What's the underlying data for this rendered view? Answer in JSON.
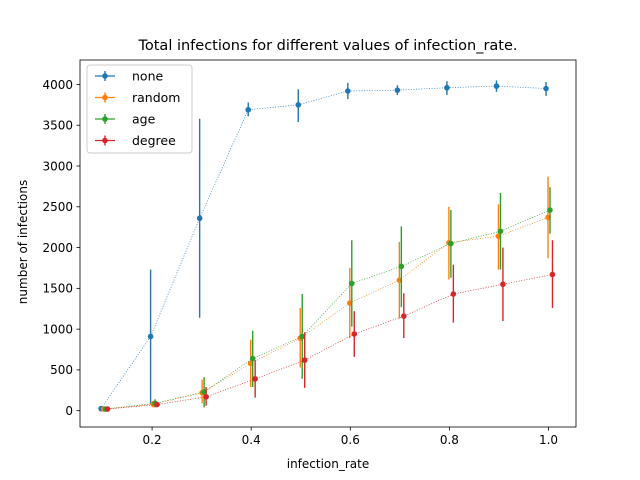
{
  "chart_data": {
    "type": "line",
    "title": "Total infections for different values of infection_rate.",
    "xlabel": "infection_rate",
    "ylabel": "number of infections",
    "xlim": [
      0.0545,
      1.0555
    ],
    "ylim": [
      -200,
      4300
    ],
    "x_ticks": [
      0.2,
      0.4,
      0.6,
      0.8,
      1.0
    ],
    "x_tick_labels": [
      "0.2",
      "0.4",
      "0.6",
      "0.8",
      "1.0"
    ],
    "y_ticks": [
      0,
      500,
      1000,
      1500,
      2000,
      2500,
      3000,
      3500,
      4000
    ],
    "y_tick_labels": [
      "0",
      "500",
      "1000",
      "1500",
      "2000",
      "2500",
      "3000",
      "3500",
      "4000"
    ],
    "grid": false,
    "legend_position": "top-left",
    "series": [
      {
        "name": "none",
        "color": "#1f77b4",
        "points": [
          {
            "x": 0.097,
            "y": 25,
            "lo": 0,
            "hi": 55
          },
          {
            "x": 0.197,
            "y": 910,
            "lo": 90,
            "hi": 1730
          },
          {
            "x": 0.296,
            "y": 2360,
            "lo": 1140,
            "hi": 3580
          },
          {
            "x": 0.394,
            "y": 3690,
            "lo": 3610,
            "hi": 3780
          },
          {
            "x": 0.495,
            "y": 3750,
            "lo": 3540,
            "hi": 3940
          },
          {
            "x": 0.595,
            "y": 3920,
            "lo": 3820,
            "hi": 4020
          },
          {
            "x": 0.695,
            "y": 3930,
            "lo": 3870,
            "hi": 3990
          },
          {
            "x": 0.795,
            "y": 3960,
            "lo": 3870,
            "hi": 4040
          },
          {
            "x": 0.895,
            "y": 3980,
            "lo": 3910,
            "hi": 4050
          },
          {
            "x": 0.995,
            "y": 3950,
            "lo": 3860,
            "hi": 4030
          }
        ]
      },
      {
        "name": "random",
        "color": "#ff7f0e",
        "points": [
          {
            "x": 0.102,
            "y": 20,
            "lo": 5,
            "hi": 40
          },
          {
            "x": 0.202,
            "y": 80,
            "lo": 40,
            "hi": 120
          },
          {
            "x": 0.301,
            "y": 220,
            "lo": 90,
            "hi": 380
          },
          {
            "x": 0.399,
            "y": 580,
            "lo": 290,
            "hi": 870
          },
          {
            "x": 0.499,
            "y": 890,
            "lo": 530,
            "hi": 1260
          },
          {
            "x": 0.599,
            "y": 1320,
            "lo": 890,
            "hi": 1750
          },
          {
            "x": 0.699,
            "y": 1600,
            "lo": 1130,
            "hi": 2070
          },
          {
            "x": 0.799,
            "y": 2060,
            "lo": 1610,
            "hi": 2500
          },
          {
            "x": 0.899,
            "y": 2140,
            "lo": 1730,
            "hi": 2530
          },
          {
            "x": 0.999,
            "y": 2370,
            "lo": 1870,
            "hi": 2870
          }
        ]
      },
      {
        "name": "age",
        "color": "#2ca02c",
        "points": [
          {
            "x": 0.106,
            "y": 20,
            "lo": 5,
            "hi": 35
          },
          {
            "x": 0.206,
            "y": 90,
            "lo": 40,
            "hi": 140
          },
          {
            "x": 0.305,
            "y": 230,
            "lo": 40,
            "hi": 410
          },
          {
            "x": 0.403,
            "y": 640,
            "lo": 290,
            "hi": 980
          },
          {
            "x": 0.503,
            "y": 910,
            "lo": 390,
            "hi": 1430
          },
          {
            "x": 0.603,
            "y": 1560,
            "lo": 1030,
            "hi": 2090
          },
          {
            "x": 0.703,
            "y": 1770,
            "lo": 1270,
            "hi": 2260
          },
          {
            "x": 0.803,
            "y": 2050,
            "lo": 1630,
            "hi": 2460
          },
          {
            "x": 0.903,
            "y": 2200,
            "lo": 1730,
            "hi": 2670
          },
          {
            "x": 1.003,
            "y": 2460,
            "lo": 2170,
            "hi": 2740
          }
        ]
      },
      {
        "name": "degree",
        "color": "#d62728",
        "points": [
          {
            "x": 0.11,
            "y": 20,
            "lo": 8,
            "hi": 32
          },
          {
            "x": 0.21,
            "y": 75,
            "lo": 45,
            "hi": 105
          },
          {
            "x": 0.309,
            "y": 170,
            "lo": 60,
            "hi": 290
          },
          {
            "x": 0.408,
            "y": 390,
            "lo": 160,
            "hi": 620
          },
          {
            "x": 0.508,
            "y": 620,
            "lo": 280,
            "hi": 960
          },
          {
            "x": 0.608,
            "y": 940,
            "lo": 660,
            "hi": 1220
          },
          {
            "x": 0.708,
            "y": 1160,
            "lo": 890,
            "hi": 1440
          },
          {
            "x": 0.808,
            "y": 1430,
            "lo": 1080,
            "hi": 1790
          },
          {
            "x": 0.908,
            "y": 1550,
            "lo": 1100,
            "hi": 2000
          },
          {
            "x": 1.008,
            "y": 1670,
            "lo": 1260,
            "hi": 2090
          }
        ]
      }
    ]
  }
}
